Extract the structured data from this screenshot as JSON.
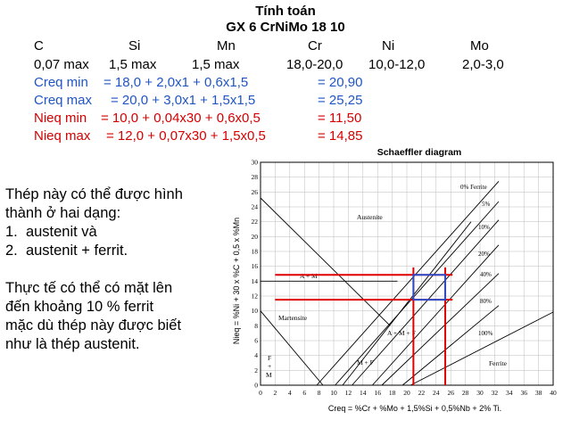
{
  "title": "Tính toán",
  "subtitle": "GX 6 CrNiMo 18 10",
  "elements": {
    "headers": [
      "C",
      "Si",
      "Mn",
      "Cr",
      "Ni",
      "Mo"
    ],
    "values": [
      "0,07 max",
      "1,5 max",
      "1,5 max",
      "18,0-20,0",
      "10,0-12,0",
      "2,0-3,0"
    ]
  },
  "equations": [
    {
      "label": "Creq min",
      "formula": "= 18,0 + 2,0x1 + 0,6x1,5",
      "result": "= 20,90",
      "color": "#1f55c4"
    },
    {
      "label": "Creq max",
      "formula": "= 20,0 + 3,0x1 + 1,5x1,5",
      "result": "= 25,25",
      "color": "#1f55c4"
    },
    {
      "label": "Nieq min",
      "formula": "= 10,0 + 0,04x30 + 0,6x0,5",
      "result": "= 11,50",
      "color": "#d40000"
    },
    {
      "label": "Nieq max",
      "formula": "= 12,0 + 0,07x30 + 1,5x0,5",
      "result": "= 14,85",
      "color": "#d40000"
    }
  ],
  "body_text": {
    "line1": "Thép này có thể được hình",
    "line2": "thành ở hai dạng:",
    "item1_num": "1.",
    "item1": "austenit và",
    "item2_num": "2.",
    "item2": "austenit + ferrit.",
    "para2_line1": "Thực tế có thể có mặt lên",
    "para2_line2": "đến khoảng 10 % ferrit",
    "para2_line3": "mặc dù thép này được biết",
    "para2_line4": "như là thép austenit."
  },
  "diagram": {
    "title": "Schaeffler diagram",
    "xlabel": "Creq = %Cr + %Mo + 1,5%Si + 0,5%Nb + 2% Ti.",
    "ylabel": "Nieq = %Ni + 30 x %C + 0,5 x %Mn",
    "x_ticks": [
      "0",
      "2",
      "4",
      "6",
      "8",
      "10",
      "12",
      "14",
      "16",
      "18",
      "20",
      "22",
      "24",
      "26",
      "28",
      "30",
      "32",
      "34",
      "36",
      "38",
      "40"
    ],
    "y_ticks": [
      "0",
      "2",
      "4",
      "6",
      "8",
      "10",
      "12",
      "14",
      "16",
      "18",
      "20",
      "22",
      "24",
      "26",
      "28",
      "30"
    ],
    "xlim": [
      0,
      40
    ],
    "ylim": [
      0,
      30
    ],
    "regions": {
      "austenite": "Austenite",
      "a_m": "A + M",
      "martensite": "Martensite",
      "a_m_f": "A + M + F",
      "m_f": "M + F",
      "ferrite": "Ferrite",
      "f_m_top": "F",
      "f_m_plus": "+",
      "f_m_bottom": "M"
    },
    "ferrite_lines": [
      "0% Ferrite",
      "5%",
      "10%",
      "20%",
      "40%",
      "80%",
      "100%"
    ],
    "blue_box": {
      "x": [
        20.9,
        25.25
      ],
      "y": [
        11.5,
        14.85
      ]
    },
    "red_marks": {
      "x": [
        20.9,
        25.25
      ],
      "y": [
        11.5,
        14.85
      ]
    },
    "colors": {
      "blue": "#1f4fd6",
      "red": "#e00000"
    }
  }
}
